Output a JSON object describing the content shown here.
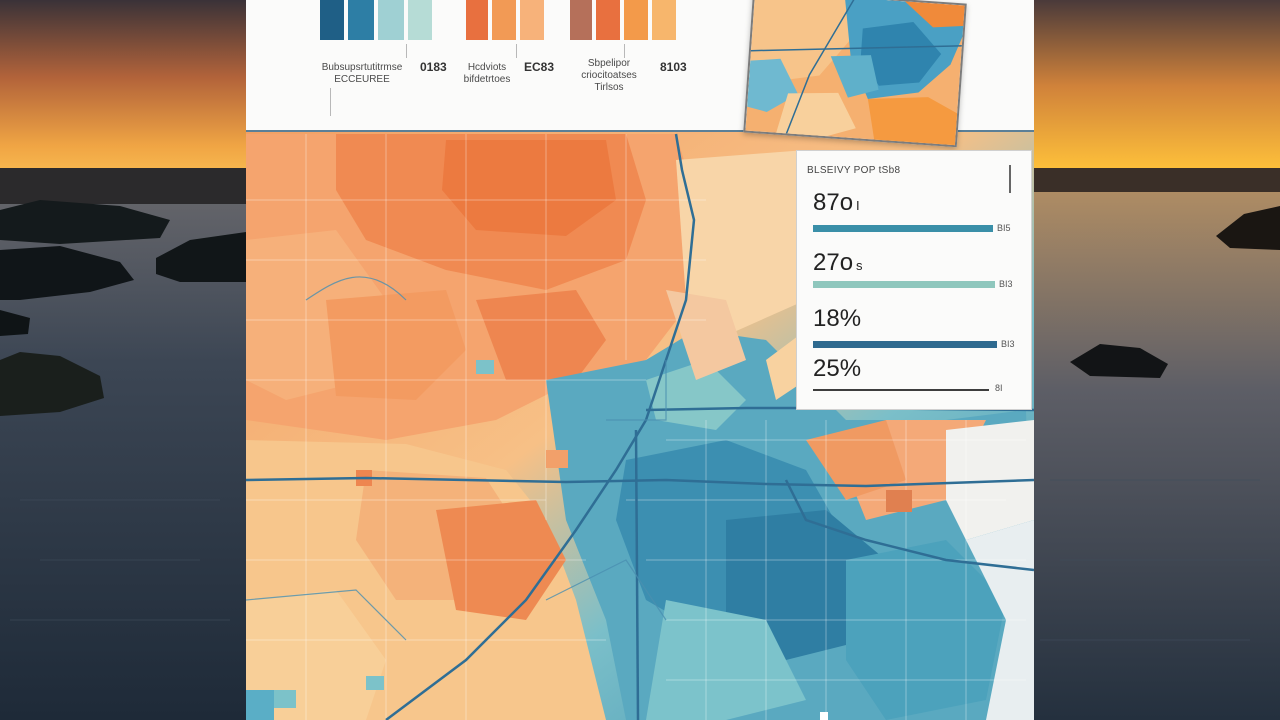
{
  "colors": {
    "teal_dark": "#2c7ea6",
    "teal_light": "#6fc0cf",
    "orange_dark": "#e8703f",
    "orange_light": "#f6b57a",
    "sunset": "#f3a43a",
    "water": "#263547"
  },
  "top_charts": [
    {
      "label": "Bubsupsrtutitrmse\nECCEUREE",
      "value": "0183",
      "bars": [
        "#1f5f86",
        "#2d7ea5",
        "#9fd0d3",
        "#b6dcd6"
      ]
    },
    {
      "label": "Hcdviots\nbifdetrtoes",
      "value": "EC83",
      "bars": [
        "#e8703f",
        "#f29a55",
        "#f7b27a"
      ]
    },
    {
      "label": "Sbpelipor\ncriocitoatses\nTirlsos",
      "value": "8103",
      "bars": [
        "#b5705a",
        "#e8703f",
        "#f39a4a",
        "#f7b66c"
      ]
    }
  ],
  "stats": {
    "header": "BLSEIVY POP tSb8",
    "items": [
      {
        "value": "87o",
        "suffix": "I",
        "end_label": "BI5",
        "bar_color": "#3a8fa8",
        "fill": 0.92
      },
      {
        "value": "27o",
        "suffix": "s",
        "end_label": "BI3",
        "bar_color": "#8fc7bd",
        "fill": 0.95
      },
      {
        "value": "18%",
        "suffix": "",
        "end_label": "BI3",
        "bar_color": "#2f6a8f",
        "fill": 0.96
      },
      {
        "value": "25%",
        "suffix": "",
        "end_label": "8I",
        "bar_color": "#3d3d3d",
        "fill": 0.92
      }
    ]
  }
}
